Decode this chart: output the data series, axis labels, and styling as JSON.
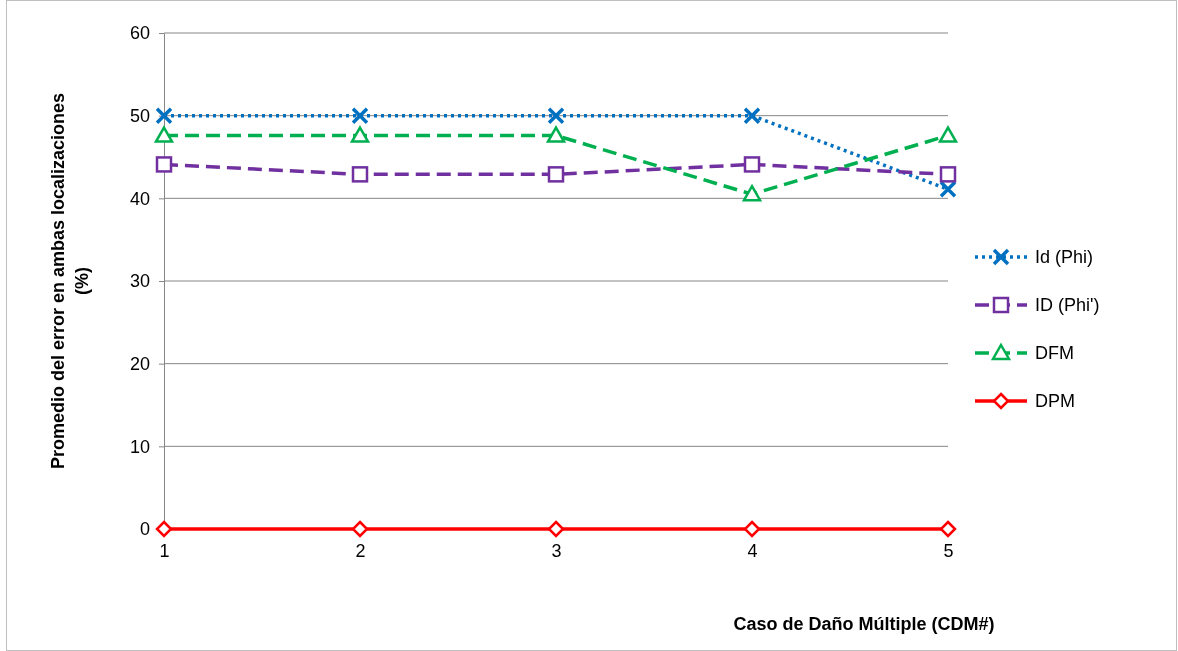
{
  "chart_data": {
    "type": "line",
    "xlabel": "Caso de Daño Múltiple (CDM#)",
    "ylabel": "Promedio del error en ambas localizaciones (%)",
    "categories": [
      "1",
      "2",
      "3",
      "4",
      "5"
    ],
    "series": [
      {
        "name": "Id (Phi)",
        "color": "#0070c0",
        "values": [
          50,
          50,
          50,
          50,
          41.1
        ],
        "marker": "cross",
        "line_style": "dotted"
      },
      {
        "name": "ID (Phi')",
        "color": "#7030a0",
        "values": [
          44.1,
          42.9,
          42.9,
          44.1,
          42.9
        ],
        "marker": "square",
        "line_style": "dashed"
      },
      {
        "name": "DFM",
        "color": "#00b050",
        "values": [
          47.6,
          47.6,
          47.6,
          40.5,
          47.6
        ],
        "marker": "triangle",
        "line_style": "dashed"
      },
      {
        "name": "DPM",
        "color": "#ff0000",
        "values": [
          0,
          0,
          0,
          0,
          0
        ],
        "marker": "diamond",
        "line_style": "solid"
      }
    ],
    "ylim": [
      0,
      60
    ],
    "yticks": [
      0,
      10,
      20,
      30,
      40,
      50,
      60
    ],
    "grid": "y",
    "legend": "right"
  }
}
